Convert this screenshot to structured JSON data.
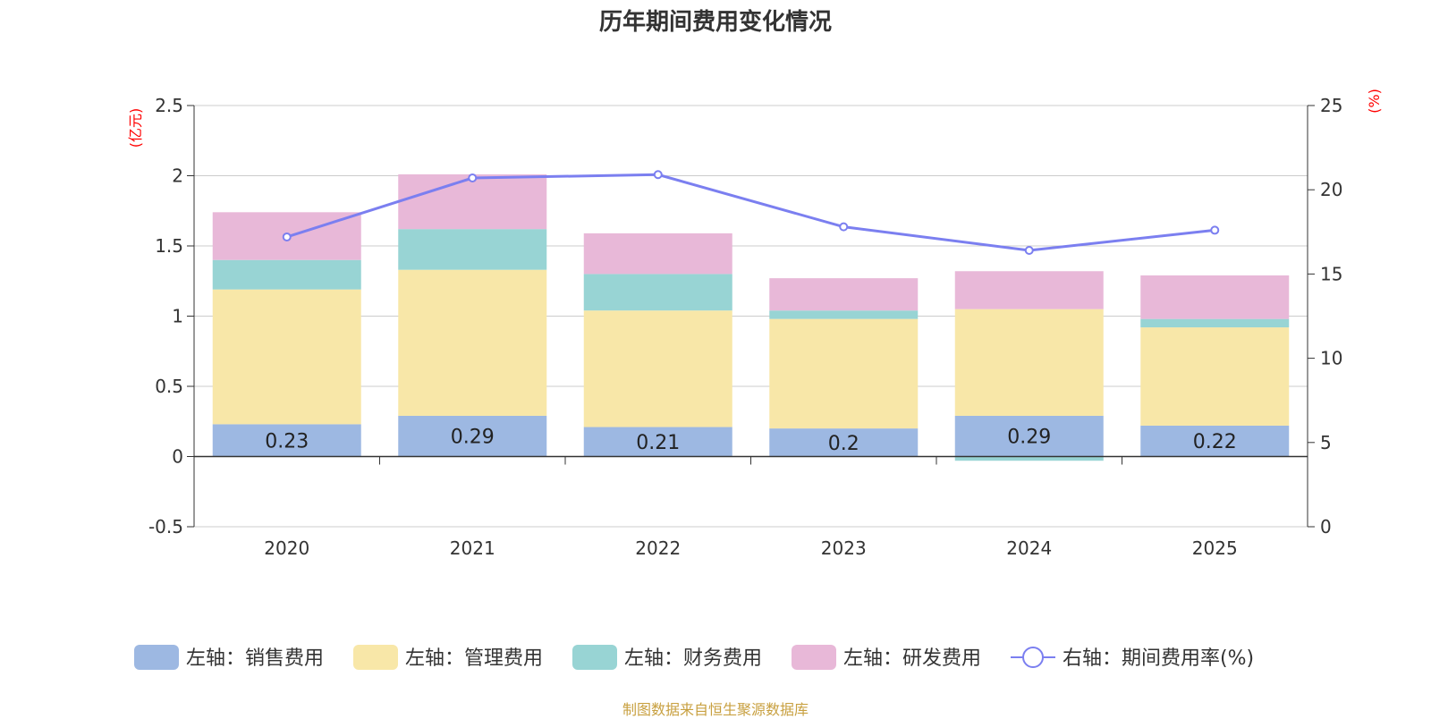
{
  "chart_data": {
    "type": "bar",
    "title": "历年期间费用变化情况",
    "source": "制图数据来自恒生聚源数据库",
    "categories": [
      "2020",
      "2021",
      "2022",
      "2023",
      "2024",
      "2025"
    ],
    "left_axis": {
      "unit": "(亿元)",
      "ylim": [
        -0.5,
        2.5
      ],
      "ticks": [
        -0.5,
        0,
        0.5,
        1,
        1.5,
        2,
        2.5
      ],
      "tick_labels": [
        "-0.5",
        "0",
        "0.5",
        "1",
        "1.5",
        "2",
        "2.5"
      ]
    },
    "right_axis": {
      "unit": "(%)",
      "ylim": [
        0,
        25
      ],
      "ticks": [
        0,
        5,
        10,
        15,
        20,
        25
      ],
      "tick_labels": [
        "0",
        "5",
        "10",
        "15",
        "20",
        "25"
      ]
    },
    "series": [
      {
        "name": "左轴：销售费用",
        "axis": "left",
        "kind": "bar",
        "color": "#9db8e2",
        "values": [
          0.23,
          0.29,
          0.21,
          0.2,
          0.29,
          0.22
        ],
        "labels": [
          "0.23",
          "0.29",
          "0.21",
          "0.2",
          "0.29",
          "0.22"
        ]
      },
      {
        "name": "左轴：管理费用",
        "axis": "left",
        "kind": "bar",
        "color": "#f8e7a8",
        "values": [
          0.96,
          1.04,
          0.83,
          0.78,
          0.76,
          0.7
        ]
      },
      {
        "name": "左轴：财务费用",
        "axis": "left",
        "kind": "bar",
        "color": "#98d4d4",
        "values": [
          0.21,
          0.29,
          0.26,
          0.06,
          -0.03,
          0.06
        ]
      },
      {
        "name": "左轴：研发费用",
        "axis": "left",
        "kind": "bar",
        "color": "#e8b8d8",
        "values": [
          0.34,
          0.39,
          0.29,
          0.23,
          0.27,
          0.31
        ]
      },
      {
        "name": "右轴：期间费用率(%)",
        "axis": "right",
        "kind": "line",
        "color": "#7b7ff0",
        "values": [
          17.2,
          20.7,
          20.9,
          17.8,
          16.4,
          17.6
        ]
      }
    ],
    "grid": true,
    "legend_position": "bottom"
  }
}
